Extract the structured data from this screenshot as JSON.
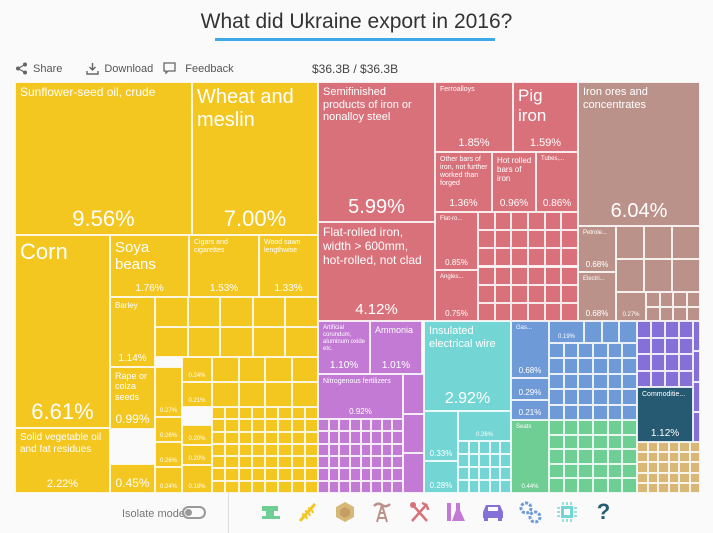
{
  "header": {
    "title": "What did Ukraine export in 2016?"
  },
  "toolbar": {
    "share": "Share",
    "download": "Download",
    "feedback": "Feedback",
    "total": "$36.3B / $36.3B"
  },
  "footer": {
    "isolate_label": "Isolate mode",
    "isolate_on": false,
    "category_icons": [
      {
        "name": "textiles-icon",
        "color": "#6fce94"
      },
      {
        "name": "vegetable-products-icon",
        "color": "#f3c620"
      },
      {
        "name": "stone-icon",
        "color": "#d8b777"
      },
      {
        "name": "minerals-icon",
        "color": "#bb928a"
      },
      {
        "name": "metals-icon",
        "color": "#d9717a"
      },
      {
        "name": "chemicals-icon",
        "color": "#c27ad4"
      },
      {
        "name": "vehicles-icon",
        "color": "#8470d6"
      },
      {
        "name": "machinery-icon",
        "color": "#6f9ad8"
      },
      {
        "name": "electronics-icon",
        "color": "#74d6d4"
      },
      {
        "name": "unknown-icon",
        "color": "#265a72"
      }
    ]
  },
  "colors": {
    "agriculture": "#f3c620",
    "metals": "#d9717a",
    "minerals": "#bb928a",
    "chemicals": "#c27ad4",
    "electronics": "#74d6d4",
    "machinery": "#6f9ad8",
    "vehicles": "#8470d6",
    "textiles": "#6fce94",
    "stone": "#d8b777",
    "unknown": "#265a72"
  },
  "chart_data": {
    "type": "treemap",
    "title": "What did Ukraine export in 2016?",
    "total": "$36.3B",
    "items": [
      {
        "name": "Sunflower-seed oil, crude",
        "share": 9.56,
        "group": "agriculture"
      },
      {
        "name": "Wheat and meslin",
        "share": 7.0,
        "group": "agriculture"
      },
      {
        "name": "Corn",
        "share": 6.61,
        "group": "agriculture"
      },
      {
        "name": "Soya beans",
        "share": 1.76,
        "group": "agriculture"
      },
      {
        "name": "Cigars and cigarettes",
        "share": 1.53,
        "group": "agriculture"
      },
      {
        "name": "Wood sawn lengthwise",
        "share": 1.33,
        "group": "agriculture"
      },
      {
        "name": "Barley",
        "share": 1.14,
        "group": "agriculture"
      },
      {
        "name": "Rape or colza seeds",
        "share": 0.99,
        "group": "agriculture"
      },
      {
        "name": "Solid vegetable oil and fat residues",
        "share": 2.22,
        "group": "agriculture"
      },
      {
        "name": "",
        "share": 0.45,
        "group": "agriculture"
      },
      {
        "name": "",
        "share": 0.27,
        "group": "agriculture"
      },
      {
        "name": "",
        "share": 0.26,
        "group": "agriculture"
      },
      {
        "name": "",
        "share": 0.26,
        "group": "agriculture"
      },
      {
        "name": "",
        "share": 0.24,
        "group": "agriculture"
      },
      {
        "name": "",
        "share": 0.24,
        "group": "agriculture"
      },
      {
        "name": "",
        "share": 0.21,
        "group": "agriculture"
      },
      {
        "name": "",
        "share": 0.2,
        "group": "agriculture"
      },
      {
        "name": "",
        "share": 0.2,
        "group": "agriculture"
      },
      {
        "name": "",
        "share": 0.19,
        "group": "agriculture"
      },
      {
        "name": "Semifinished products of iron or nonalloy steel",
        "share": 5.99,
        "group": "metals"
      },
      {
        "name": "Flat-rolled iron, width > 600mm, hot-rolled, not clad",
        "share": 4.12,
        "group": "metals"
      },
      {
        "name": "Ferroalloys",
        "share": 1.85,
        "group": "metals"
      },
      {
        "name": "Pig iron",
        "share": 1.59,
        "group": "metals"
      },
      {
        "name": "Other bars of iron, not further worked than forged",
        "share": 1.36,
        "group": "metals"
      },
      {
        "name": "Hot rolled bars of iron",
        "share": 0.96,
        "group": "metals"
      },
      {
        "name": "Tubes,...",
        "share": 0.86,
        "group": "metals"
      },
      {
        "name": "Flat-ro...",
        "share": 0.85,
        "group": "metals"
      },
      {
        "name": "Angles...",
        "share": 0.75,
        "group": "metals"
      },
      {
        "name": "Iron ores and concentrates",
        "share": 6.04,
        "group": "minerals"
      },
      {
        "name": "Petrole...",
        "share": 0.68,
        "group": "minerals"
      },
      {
        "name": "Electri...",
        "share": 0.68,
        "group": "minerals"
      },
      {
        "name": "",
        "share": 0.27,
        "group": "minerals"
      },
      {
        "name": "Artificial corundum, aluminum oxide etc.",
        "share": 1.1,
        "group": "chemicals"
      },
      {
        "name": "Ammonia",
        "share": 1.01,
        "group": "chemicals"
      },
      {
        "name": "Nitrogenous fertilizers",
        "share": 0.92,
        "group": "chemicals"
      },
      {
        "name": "Insulated electrical wire",
        "share": 2.92,
        "group": "electronics"
      },
      {
        "name": "",
        "share": 0.33,
        "group": "electronics"
      },
      {
        "name": "",
        "share": 0.28,
        "group": "electronics"
      },
      {
        "name": "",
        "share": 0.26,
        "group": "electronics"
      },
      {
        "name": "Gas...",
        "share": 0.68,
        "group": "machinery"
      },
      {
        "name": "",
        "share": 0.29,
        "group": "machinery"
      },
      {
        "name": "",
        "share": 0.21,
        "group": "machinery"
      },
      {
        "name": "",
        "share": 0.19,
        "group": "machinery"
      },
      {
        "name": "Seats",
        "share": 0.44,
        "group": "textiles"
      },
      {
        "name": "Commoditie...",
        "share": 1.12,
        "group": "unknown"
      }
    ]
  }
}
